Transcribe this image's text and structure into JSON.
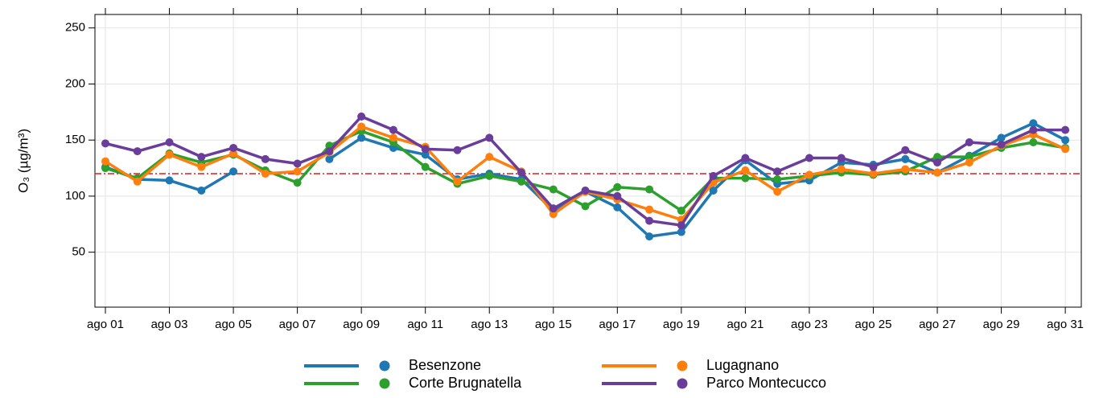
{
  "chart_data": {
    "type": "line",
    "ylabel": "O₃ (µg/m³)",
    "categories": [
      "ago 01",
      null,
      "ago 03",
      null,
      "ago 05",
      null,
      "ago 07",
      null,
      "ago 09",
      null,
      "ago 11",
      null,
      "ago 13",
      null,
      "ago 15",
      null,
      "ago 17",
      null,
      "ago 19",
      null,
      "ago 21",
      null,
      "ago 23",
      null,
      "ago 25",
      null,
      "ago 27",
      null,
      "ago 29",
      null,
      "ago 31"
    ],
    "series": [
      {
        "name": "Besenzone",
        "color": "#1f77b4",
        "values": [
          126,
          115,
          114,
          105,
          122,
          null,
          null,
          133,
          152,
          143,
          137,
          115,
          120,
          115,
          87,
          104,
          90,
          64,
          68,
          105,
          132,
          111,
          114,
          130,
          128,
          133,
          121,
          136,
          152,
          165,
          150
        ]
      },
      {
        "name": "Corte Brugnatella",
        "color": "#2ca02c",
        "values": [
          125,
          116,
          138,
          130,
          137,
          123,
          112,
          145,
          158,
          148,
          126,
          111,
          118,
          113,
          106,
          91,
          108,
          106,
          87,
          116,
          116,
          115,
          118,
          121,
          119,
          122,
          135,
          135,
          143,
          148,
          143
        ]
      },
      {
        "name": "Lugagnano",
        "color": "#ff7f0e",
        "values": [
          131,
          113,
          137,
          126,
          138,
          120,
          122,
          139,
          162,
          152,
          144,
          113,
          135,
          122,
          84,
          104,
          97,
          88,
          79,
          112,
          123,
          104,
          119,
          124,
          120,
          124,
          121,
          130,
          145,
          155,
          142
        ]
      },
      {
        "name": "Parco Montecucco",
        "color": "#6a3d9a",
        "values": [
          147,
          140,
          148,
          135,
          143,
          133,
          129,
          140,
          171,
          159,
          142,
          141,
          152,
          121,
          89,
          105,
          100,
          78,
          74,
          118,
          134,
          122,
          134,
          134,
          126,
          141,
          130,
          148,
          146,
          159,
          159
        ]
      }
    ],
    "ylim": [
      1,
      262
    ],
    "yticks": [
      50,
      100,
      150,
      200,
      250
    ],
    "grid": true,
    "reference_line": {
      "value": 120,
      "color": "#e41a1c"
    },
    "legend": "bottom"
  }
}
